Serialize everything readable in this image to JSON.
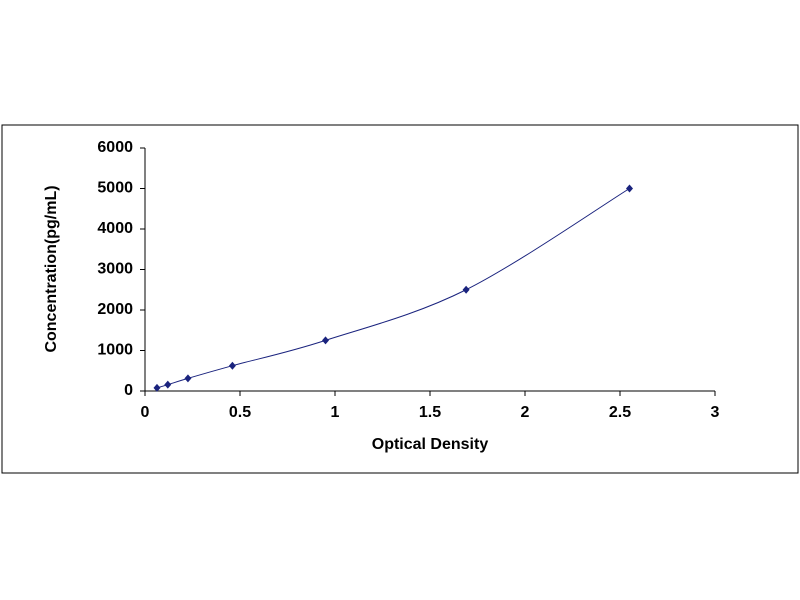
{
  "chart_data": {
    "type": "scatter",
    "smooth_line": true,
    "xlabel": "Optical Density",
    "ylabel": "Concentration(pg/mL)",
    "x": [
      0.063,
      0.12,
      0.226,
      0.46,
      0.95,
      1.69,
      2.55
    ],
    "values": [
      78,
      156,
      312,
      625,
      1250,
      2500,
      5000
    ],
    "color": "#1a237e",
    "line_color": "#1a237e",
    "xlim": [
      0,
      3
    ],
    "xticks": [
      0,
      0.5,
      1,
      1.5,
      2,
      2.5,
      3
    ],
    "ylim": [
      0,
      6000
    ],
    "yticks": [
      0,
      1000,
      2000,
      3000,
      4000,
      5000,
      6000
    ],
    "grid": false
  }
}
